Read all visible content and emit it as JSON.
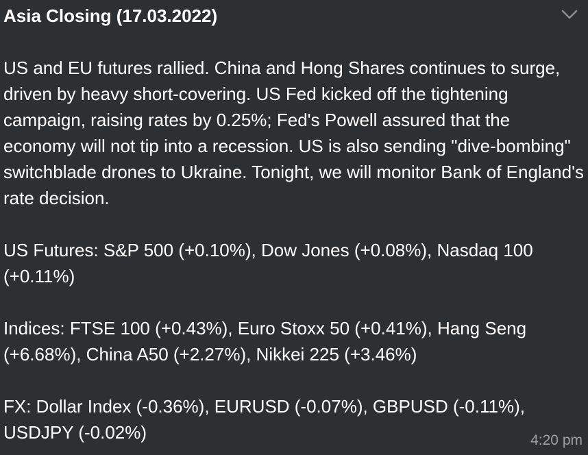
{
  "message": {
    "title": "Asia Closing (17.03.2022)",
    "paragraphs": [
      "US and EU futures rallied. China and Hong Shares continues to surge, driven by heavy short-covering.  US Fed kicked off the tightening campaign, raising rates by 0.25%; Fed's Powell assured that the economy will not tip into a recession. US is also sending \"dive-bombing\" switchblade drones to Ukraine. Tonight, we will monitor Bank of England's rate decision.",
      "US Futures: S&P 500 (+0.10%), Dow Jones (+0.08%), Nasdaq 100 (+0.11%)",
      "Indices: FTSE 100 (+0.43%), Euro Stoxx 50 (+0.41%), Hang Seng (+6.68%), China A50 (+2.27%), Nikkei 225 (+3.46%)",
      "FX: Dollar Index (-0.36%), EURUSD (-0.07%), GBPUSD (-0.11%), USDJPY (-0.02%)"
    ],
    "time": "4:20 pm",
    "collapse_icon": "chevron-down-icon"
  },
  "colors": {
    "background": "#2d3033",
    "text": "#ffffff",
    "timestamp": "#9aa0a6",
    "icon": "#8a8f94"
  }
}
